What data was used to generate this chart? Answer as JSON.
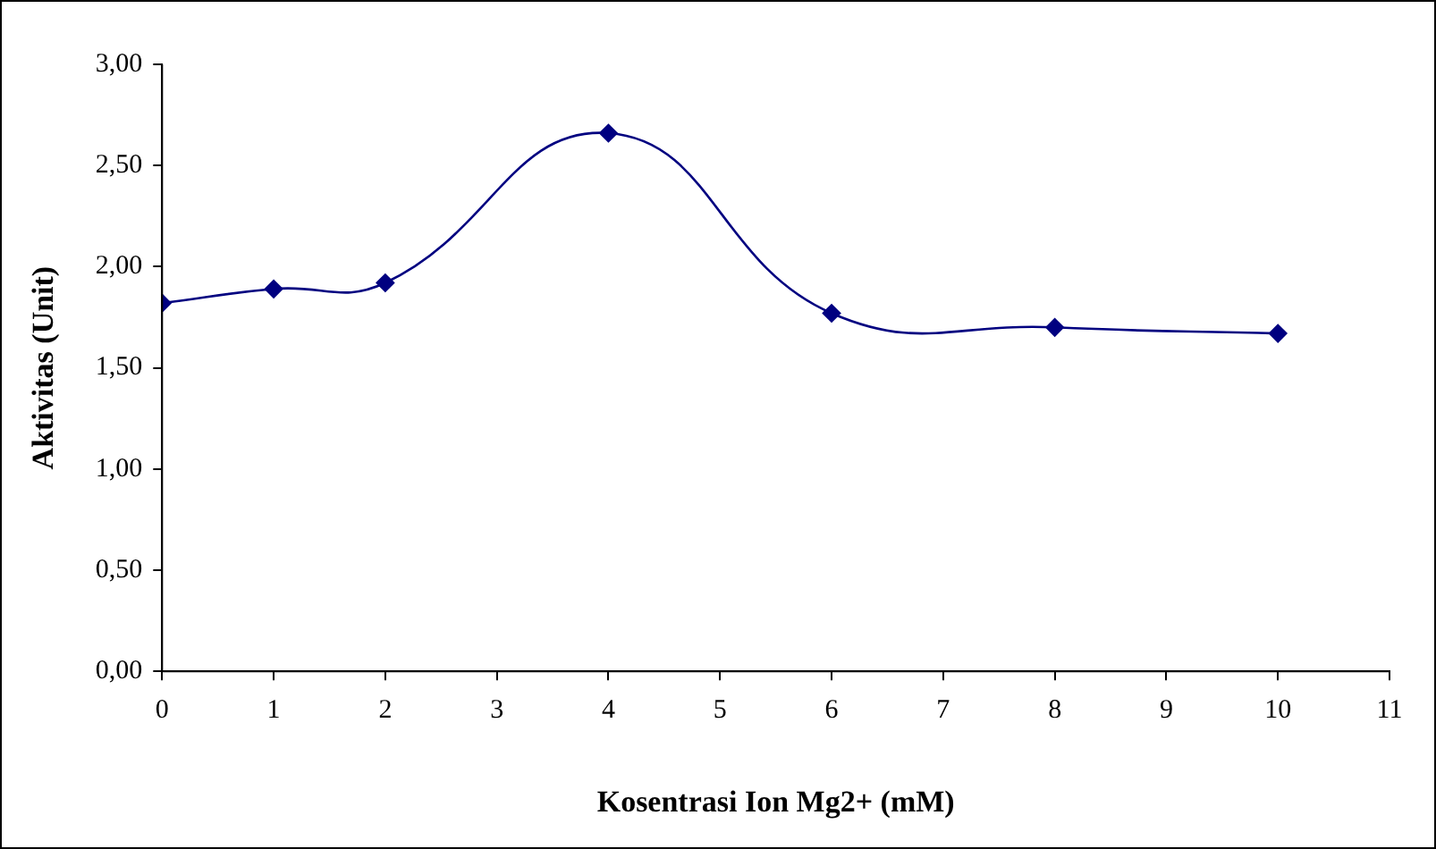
{
  "chart_data": {
    "type": "line",
    "xlabel": "Kosentrasi Ion Mg2+ (mM)",
    "ylabel": "Aktivitas (Unit)",
    "x": [
      0,
      1,
      2,
      4,
      6,
      8,
      10
    ],
    "series": [
      {
        "color": "#000080",
        "values": [
          1.82,
          1.89,
          1.92,
          2.66,
          1.77,
          1.7,
          1.67
        ]
      }
    ],
    "xlim": [
      0,
      11
    ],
    "xticks": [
      0,
      1,
      2,
      3,
      4,
      5,
      6,
      7,
      8,
      9,
      10,
      11
    ],
    "ylim": [
      0,
      3
    ],
    "yticks": [
      {
        "value": 0,
        "label": "0,00"
      },
      {
        "value": 0.5,
        "label": "0,50"
      },
      {
        "value": 1,
        "label": "1,00"
      },
      {
        "value": 1.5,
        "label": "1,50"
      },
      {
        "value": 2,
        "label": "2,00"
      },
      {
        "value": 2.5,
        "label": "2,50"
      },
      {
        "value": 3,
        "label": "3,00"
      }
    ],
    "grid": false,
    "legend": false,
    "marker": "diamond",
    "line_style": "solid"
  }
}
